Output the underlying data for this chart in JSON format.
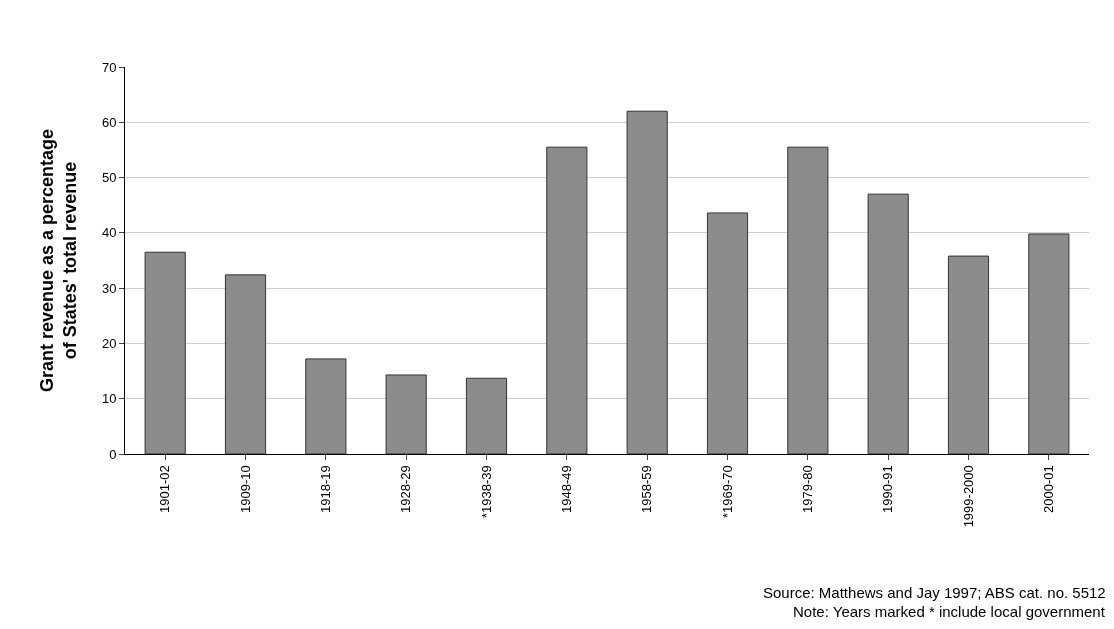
{
  "chart_data": {
    "type": "bar",
    "ylabel": "Grant revenue as a percentage\nof States' total revenue",
    "categories": [
      "1901-02",
      "1909-10",
      "1918-19",
      "1928-29",
      "*1938-39",
      "1948-49",
      "1958-59",
      "*1969-70",
      "1979-80",
      "1990-91",
      "1999-2000",
      "2000-01"
    ],
    "values": [
      36.5,
      32.4,
      17.2,
      14.3,
      13.7,
      55.5,
      62.0,
      43.6,
      55.5,
      47.0,
      35.8,
      39.8
    ],
    "color": "#8c8c8c",
    "ylim": [
      0,
      70
    ],
    "yticks": [
      0,
      10,
      20,
      30,
      40,
      50,
      60,
      70
    ],
    "grid": "y",
    "annotations": [
      "Source: Matthews and Jay 1997; ABS cat. no. 5512",
      "Note: Years marked * include local government"
    ]
  }
}
